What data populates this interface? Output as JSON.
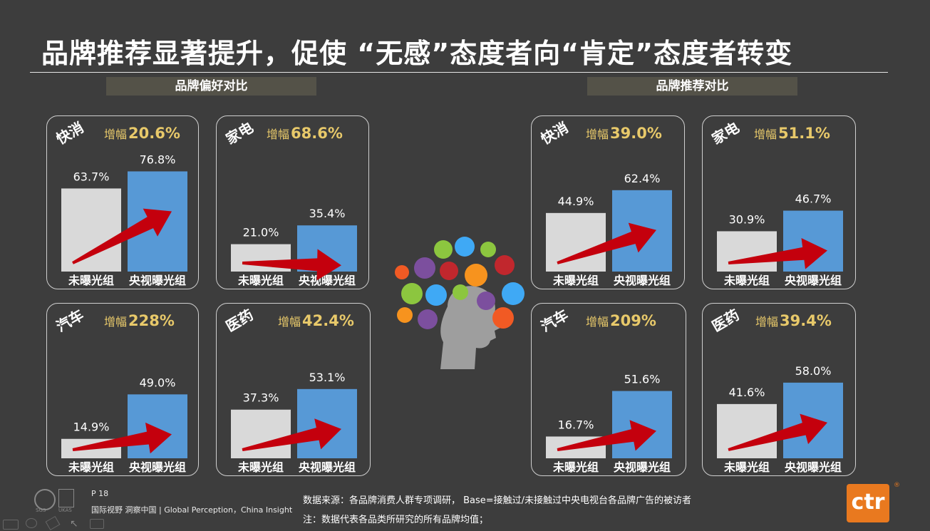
{
  "title": "品牌推荐显著提升，促使 “无感”态度者向“肯定”态度者转变",
  "sections": {
    "left": "品牌偏好对比",
    "right": "品牌推荐对比"
  },
  "increase_label": "增幅",
  "colors": {
    "unexposed": "#d9d9d9",
    "exposed": "#5799d6",
    "arrow": "#c4000d",
    "increase": "#e8c96a"
  },
  "chart_data": [
    {
      "type": "bar",
      "group": "品牌偏好对比",
      "title": "快消",
      "increase": "20.6%",
      "categories": [
        "未曝光组",
        "央视曝光组"
      ],
      "values": [
        63.7,
        76.8
      ],
      "labels": [
        "63.7%",
        "76.8%"
      ],
      "ylim": [
        0,
        100
      ]
    },
    {
      "type": "bar",
      "group": "品牌偏好对比",
      "title": "家电",
      "increase": "68.6%",
      "categories": [
        "未曝光组",
        "央视曝光组"
      ],
      "values": [
        21.0,
        35.4
      ],
      "labels": [
        "21.0%",
        "35.4%"
      ],
      "ylim": [
        0,
        100
      ]
    },
    {
      "type": "bar",
      "group": "品牌偏好对比",
      "title": "汽车",
      "increase": "228%",
      "categories": [
        "未曝光组",
        "央视曝光组"
      ],
      "values": [
        14.9,
        49.0
      ],
      "labels": [
        "14.9%",
        "49.0%"
      ],
      "ylim": [
        0,
        100
      ]
    },
    {
      "type": "bar",
      "group": "品牌偏好对比",
      "title": "医药",
      "increase": "42.4%",
      "categories": [
        "未曝光组",
        "央视曝光组"
      ],
      "values": [
        37.3,
        53.1
      ],
      "labels": [
        "37.3%",
        "53.1%"
      ],
      "ylim": [
        0,
        100
      ]
    },
    {
      "type": "bar",
      "group": "品牌推荐对比",
      "title": "快消",
      "increase": "39.0%",
      "categories": [
        "未曝光组",
        "央视曝光组"
      ],
      "values": [
        44.9,
        62.4
      ],
      "labels": [
        "44.9%",
        "62.4%"
      ],
      "ylim": [
        0,
        100
      ]
    },
    {
      "type": "bar",
      "group": "品牌推荐对比",
      "title": "家电",
      "increase": "51.1%",
      "categories": [
        "未曝光组",
        "央视曝光组"
      ],
      "values": [
        30.9,
        46.7
      ],
      "labels": [
        "30.9%",
        "46.7%"
      ],
      "ylim": [
        0,
        100
      ]
    },
    {
      "type": "bar",
      "group": "品牌推荐对比",
      "title": "汽车",
      "increase": "209%",
      "categories": [
        "未曝光组",
        "央视曝光组"
      ],
      "values": [
        16.7,
        51.6
      ],
      "labels": [
        "16.7%",
        "51.6%"
      ],
      "ylim": [
        0,
        100
      ]
    },
    {
      "type": "bar",
      "group": "品牌推荐对比",
      "title": "医药",
      "increase": "39.4%",
      "categories": [
        "未曝光组",
        "央视曝光组"
      ],
      "values": [
        41.6,
        58.0
      ],
      "labels": [
        "41.6%",
        "58.0%"
      ],
      "ylim": [
        0,
        100
      ]
    }
  ],
  "footer": {
    "page": "P 18",
    "tagline": "国际视野  洞察中国 |  Global Perception，China Insight",
    "source": "数据来源：各品牌消费人群专项调研， Base=接触过/未接触过中央电视台各品牌广告的被访者",
    "note": "注：数据代表各品类所研究的所有品牌均值；",
    "logo": "ctr",
    "logo_mark": "®",
    "badge_sgs": "SGS",
    "badge_ukas": "UKAS"
  }
}
